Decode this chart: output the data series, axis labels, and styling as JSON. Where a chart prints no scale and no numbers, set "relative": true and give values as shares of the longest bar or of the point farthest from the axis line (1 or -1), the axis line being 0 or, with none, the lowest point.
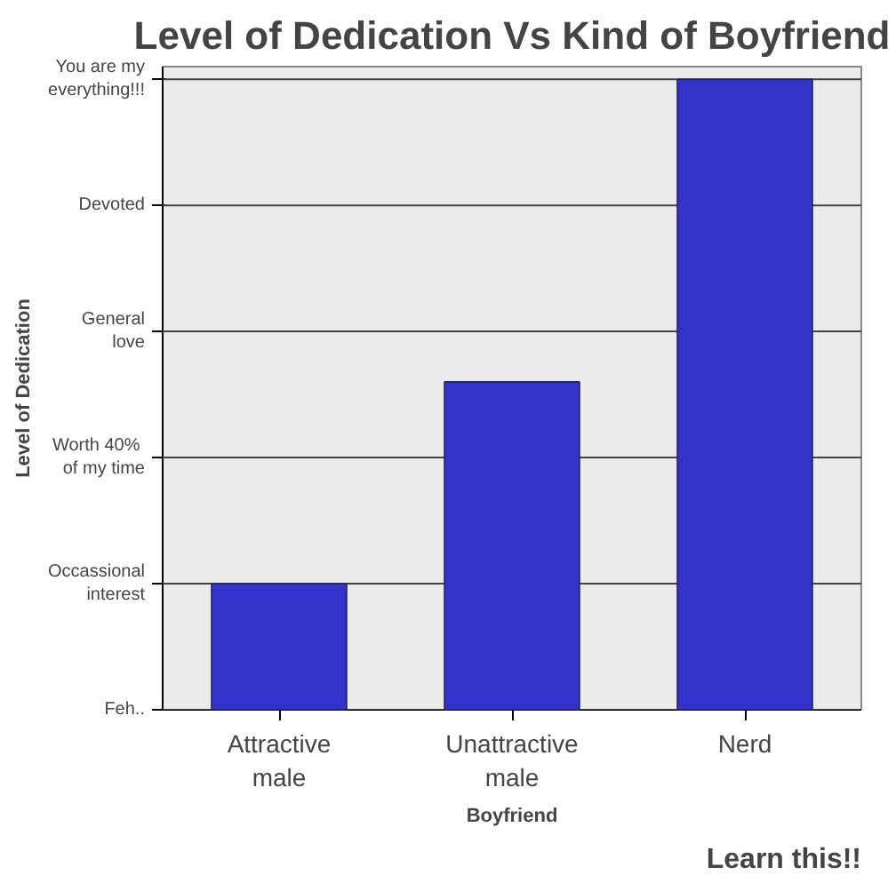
{
  "chart_data": {
    "type": "bar",
    "title": "Level of Dedication Vs Kind of Boyfriend",
    "xlabel": "Boyfriend",
    "categories": [
      "Attractive male",
      "Unattractive male",
      "Nerd"
    ],
    "values": [
      0.2,
      0.52,
      1
    ],
    "color": "#3333cc",
    "relative": true,
    "ref_lines": [
      {
        "axis": "y",
        "value": 0,
        "label": "Feh.."
      },
      {
        "axis": "y",
        "value": 0.2,
        "label": "Occassional\ninterest"
      },
      {
        "axis": "y",
        "value": 0.4,
        "label": "Worth  40%\nof my time"
      },
      {
        "axis": "y",
        "value": 0.6,
        "label": "General\nlove"
      },
      {
        "axis": "y",
        "value": 0.8,
        "label": "Devoted"
      },
      {
        "axis": "y",
        "value": 1,
        "label": "You are my\neverything!!!"
      }
    ],
    "annotations": [
      "Level of Dedication",
      "Learn this!!"
    ]
  }
}
